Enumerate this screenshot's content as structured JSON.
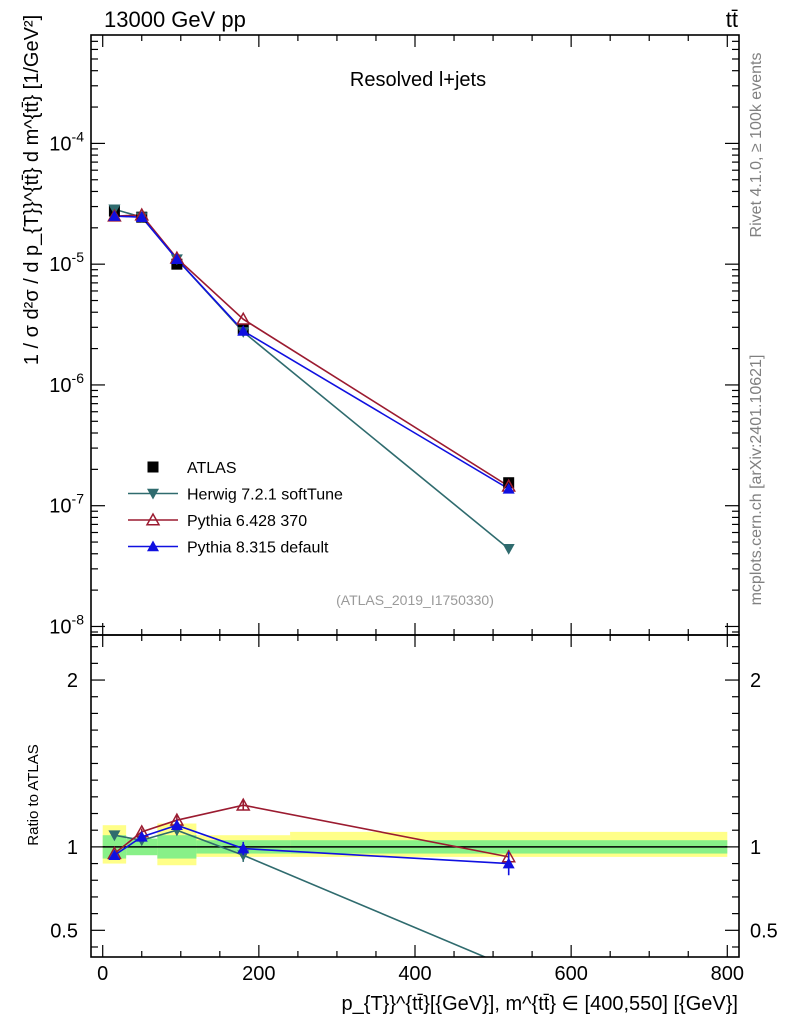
{
  "header": {
    "left": "13000 GeV pp",
    "right": "tt̄"
  },
  "side_labels": {
    "rivet": "Rivet 4.1.0, ≥ 100k events",
    "mcplots": "mcplots.cern.ch [arXiv:2401.10621]"
  },
  "chart_data": {
    "type": "line",
    "title": "Resolved l+jets",
    "analysis_id": "(ATLAS_2019_I1750330)",
    "xlabel": "p_{T}}^{tt̄}[{GeV}], m^{tt̄} ∈ [400,550] [{GeV}]",
    "ylabel": "1 / σ d²σ / d p_{T}}^{tt̄} d m^{tt̄} [1/GeV²]",
    "ratio_ylabel": "Ratio to ATLAS",
    "xlim": [
      -15,
      815
    ],
    "ylim": [
      8.5e-09,
      0.00079
    ],
    "ratio_ylim": [
      0.34,
      2.27
    ],
    "yscale": "log",
    "x_ticks": [
      "0",
      "200",
      "400",
      "600",
      "800"
    ],
    "y_ticks": [
      "10^{-8}",
      "10^{-7}",
      "10^{-6}",
      "10^{-5}",
      "10^{-4}"
    ],
    "ratio_ticks": [
      "0.5",
      "1",
      "2"
    ],
    "bin_edges": [
      0,
      30,
      70,
      120,
      240,
      800
    ],
    "band_inner": [
      [
        0.93,
        1.07
      ],
      [
        0.95,
        1.05
      ],
      [
        0.93,
        1.07
      ],
      [
        0.96,
        1.04
      ],
      [
        0.96,
        1.04
      ]
    ],
    "band_outer": [
      [
        0.9,
        1.13
      ],
      [
        0.97,
        1.04
      ],
      [
        0.89,
        1.14
      ],
      [
        0.94,
        1.07
      ],
      [
        0.94,
        1.09
      ]
    ],
    "legend_position": "lower-left",
    "series": [
      {
        "name": "ATLAS",
        "color": "#000000",
        "marker": "square",
        "x": [
          15,
          50,
          95,
          180,
          520
        ],
        "values": [
          2.75e-05,
          2.45e-05,
          1e-05,
          2.9e-06,
          1.55e-07
        ],
        "ratio": [
          1.0,
          1.0,
          1.0,
          1.0,
          1.0
        ]
      },
      {
        "name": "Herwig 7.2.1 softTune",
        "color": "#2f6b6e",
        "marker": "triangle-down",
        "x": [
          15,
          50,
          95,
          180,
          520
        ],
        "values": [
          2.85e-05,
          2.45e-05,
          1.1e-05,
          2.75e-06,
          4.4e-08
        ],
        "ratio": [
          1.07,
          1.04,
          1.1,
          0.95,
          0.28
        ],
        "ratio_err": [
          0.0,
          0.02,
          0.03,
          0.04,
          0.0
        ]
      },
      {
        "name": "Pythia 6.428 370",
        "color": "#9b1b30",
        "marker": "triangle-open",
        "x": [
          15,
          50,
          95,
          180,
          520
        ],
        "values": [
          2.5e-05,
          2.55e-05,
          1.12e-05,
          3.5e-06,
          1.45e-07
        ],
        "ratio": [
          0.96,
          1.09,
          1.16,
          1.25,
          0.94
        ],
        "ratio_err": [
          0.01,
          0.02,
          0.03,
          0.03,
          0.04
        ]
      },
      {
        "name": "Pythia 8.315 default",
        "color": "#1010e0",
        "marker": "triangle-up",
        "x": [
          15,
          50,
          95,
          180,
          520
        ],
        "values": [
          2.5e-05,
          2.45e-05,
          1.1e-05,
          2.8e-06,
          1.38e-07
        ],
        "ratio": [
          0.95,
          1.06,
          1.13,
          0.99,
          0.9
        ],
        "ratio_err": [
          0.01,
          0.02,
          0.03,
          0.04,
          0.07
        ]
      }
    ]
  }
}
